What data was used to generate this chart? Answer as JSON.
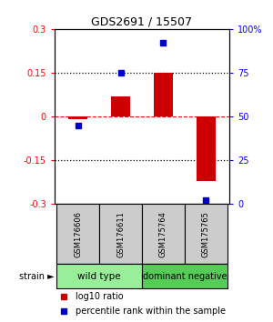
{
  "title": "GDS2691 / 15507",
  "samples": [
    "GSM176606",
    "GSM176611",
    "GSM175764",
    "GSM175765"
  ],
  "log10_ratio": [
    -0.01,
    0.07,
    0.15,
    -0.22
  ],
  "percentile_rank": [
    45,
    75,
    92,
    2
  ],
  "groups": [
    {
      "label": "wild type",
      "samples": [
        0,
        1
      ],
      "color": "#90EE90"
    },
    {
      "label": "dominant negative",
      "samples": [
        2,
        3
      ],
      "color": "#55CC55"
    }
  ],
  "ylim_left": [
    -0.3,
    0.3
  ],
  "ylim_right": [
    0,
    100
  ],
  "yticks_left": [
    -0.3,
    -0.15,
    0,
    0.15,
    0.3
  ],
  "ytick_labels_left": [
    "-0.3",
    "-0.15",
    "0",
    "0.15",
    "0.3"
  ],
  "yticks_right": [
    0,
    25,
    50,
    75,
    100
  ],
  "ytick_labels_right": [
    "0",
    "25",
    "50",
    "75",
    "100%"
  ],
  "bar_color": "#CC0000",
  "dot_color": "#0000CC",
  "bar_width": 0.45,
  "legend_bar_label": "log10 ratio",
  "legend_dot_label": "percentile rank within the sample",
  "strain_label": "strain",
  "background_color": "#ffffff",
  "plot_bg": "#ffffff",
  "sample_box_bg": "#cccccc",
  "group_wt_color": "#99ee99",
  "group_dn_color": "#55cc55"
}
